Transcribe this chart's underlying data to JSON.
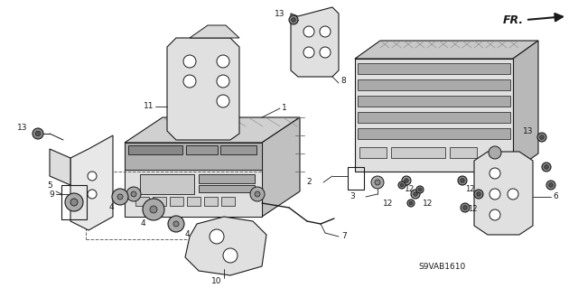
{
  "background_color": "#ffffff",
  "diagram_code": "S9VAB1610",
  "fr_text": "FR.",
  "fig_width": 6.4,
  "fig_height": 3.19,
  "dpi": 100,
  "lc": "#1a1a1a",
  "lw": 0.8,
  "fs_label": 6.5,
  "fs_code": 6.0
}
